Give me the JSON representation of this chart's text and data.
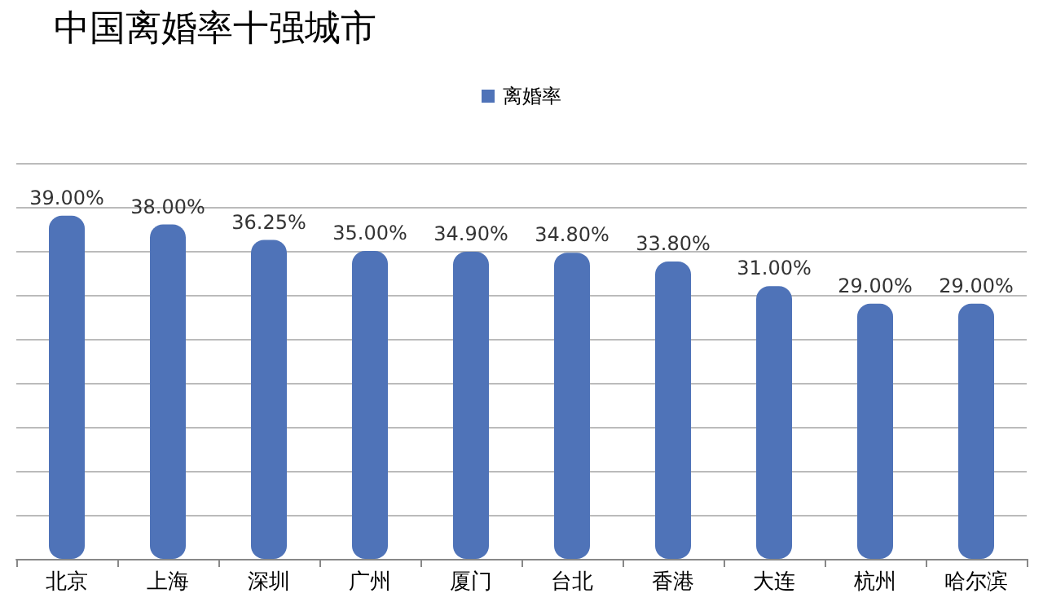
{
  "chart_data": {
    "type": "bar",
    "title": "中国离婚率十强城市",
    "categories": [
      "北京",
      "上海",
      "深圳",
      "广州",
      "厦门",
      "台北",
      "香港",
      "大连",
      "杭州",
      "哈尔滨"
    ],
    "series": [
      {
        "name": "离婚率",
        "color": "#4f73b8",
        "values": [
          39,
          38,
          36.25,
          35,
          34.9,
          34.8,
          33.8,
          31,
          29,
          29
        ],
        "value_labels": [
          "39.00%",
          "38.00%",
          "36.25%",
          "35.00%",
          "34.90%",
          "34.80%",
          "33.80%",
          "31.00%",
          "29.00%",
          "29.00%"
        ]
      }
    ],
    "ylim": [
      0,
      45
    ],
    "yticks": [
      {
        "value": 0,
        "label": null
      },
      {
        "value": 5,
        "label": null
      },
      {
        "value": 10,
        "label": null
      },
      {
        "value": 15,
        "label": null
      },
      {
        "value": 20,
        "label": null
      },
      {
        "value": 25,
        "label": null
      },
      {
        "value": 30,
        "label": null
      },
      {
        "value": 35,
        "label": null
      },
      {
        "value": 40,
        "label": null
      },
      {
        "value": 45,
        "label": null
      }
    ],
    "grid": "y",
    "legend": "top",
    "tick_labels": "x"
  }
}
